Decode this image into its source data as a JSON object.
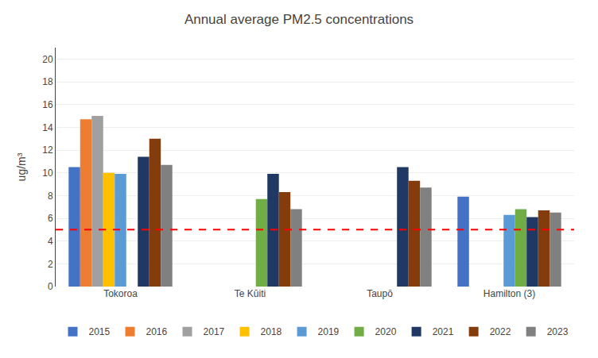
{
  "chart_data": {
    "type": "bar",
    "title": "Annual average PM2.5 concentrations",
    "ylabel": "ug/m³",
    "categories": [
      "Tokoroa",
      "Te Kūiti",
      "Taupō",
      "Hamilton (3)"
    ],
    "series": [
      {
        "name": "2015",
        "color": "#4472C4",
        "values": [
          10.5,
          null,
          null,
          7.9
        ]
      },
      {
        "name": "2016",
        "color": "#ED7D31",
        "values": [
          14.7,
          null,
          null,
          null
        ]
      },
      {
        "name": "2017",
        "color": "#A0A0A0",
        "values": [
          15.0,
          null,
          null,
          null
        ]
      },
      {
        "name": "2018",
        "color": "#FFC000",
        "values": [
          10.0,
          null,
          null,
          null
        ]
      },
      {
        "name": "2019",
        "color": "#5B9BD5",
        "values": [
          9.9,
          null,
          null,
          6.3
        ]
      },
      {
        "name": "2020",
        "color": "#70AD47",
        "values": [
          null,
          7.7,
          null,
          6.8
        ]
      },
      {
        "name": "2021",
        "color": "#1F3864",
        "values": [
          11.4,
          9.9,
          10.5,
          6.1
        ]
      },
      {
        "name": "2022",
        "color": "#843C0C",
        "values": [
          13.0,
          8.3,
          9.3,
          6.7
        ]
      },
      {
        "name": "2023",
        "color": "#808080",
        "values": [
          10.7,
          6.8,
          8.7,
          6.5
        ]
      }
    ],
    "reference_line": {
      "value": 5.0,
      "color": "#FF0000",
      "line_style": "dashed"
    },
    "ylim": [
      0,
      21
    ],
    "yticks": [
      0,
      2,
      4,
      6,
      8,
      10,
      12,
      14,
      16,
      18,
      20
    ],
    "grid": true,
    "legend": "bottom"
  }
}
